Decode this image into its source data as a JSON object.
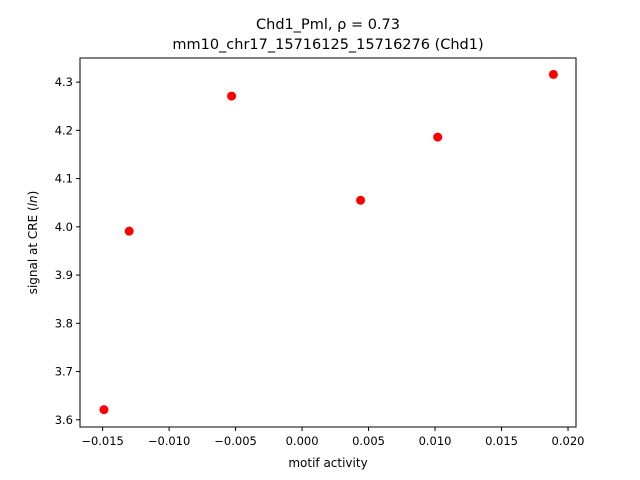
{
  "chart_data": {
    "type": "scatter",
    "title_line1": "Chd1_Pml, ρ = 0.73",
    "title_line2": "mm10_chr17_15716125_15716276 (Chd1)",
    "xlabel": "motif activity",
    "ylabel_prefix": "signal at CRE (",
    "ylabel_italic": "ln",
    "ylabel_suffix": ")",
    "xlim": [
      -0.0167,
      0.0206
    ],
    "ylim": [
      3.585,
      4.35
    ],
    "xticks": [
      -0.015,
      -0.01,
      -0.005,
      0.0,
      0.005,
      0.01,
      0.015,
      0.02
    ],
    "xtick_labels": [
      "−0.015",
      "−0.010",
      "−0.005",
      "0.000",
      "0.005",
      "0.010",
      "0.015",
      "0.020"
    ],
    "yticks": [
      3.6,
      3.7,
      3.8,
      3.9,
      4.0,
      4.1,
      4.2,
      4.3
    ],
    "ytick_labels": [
      "3.6",
      "3.7",
      "3.8",
      "3.9",
      "4.0",
      "4.1",
      "4.2",
      "4.3"
    ],
    "grid": false,
    "marker_color": "#ff0000",
    "points": [
      {
        "x": -0.0149,
        "y": 3.621
      },
      {
        "x": -0.013,
        "y": 3.991
      },
      {
        "x": -0.0053,
        "y": 4.271
      },
      {
        "x": 0.0044,
        "y": 4.055
      },
      {
        "x": 0.0102,
        "y": 4.186
      },
      {
        "x": 0.0189,
        "y": 4.316
      }
    ]
  }
}
